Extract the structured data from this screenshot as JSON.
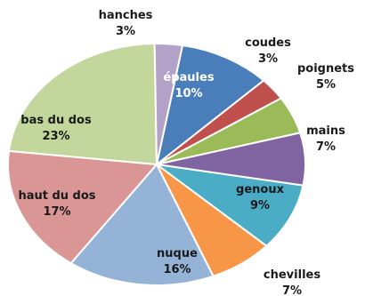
{
  "chart_data": {
    "type": "pie",
    "title": "",
    "slices": [
      {
        "name": "épaules",
        "value": 10,
        "value_label": "10%",
        "color": "#4A7EBB",
        "label_color": "#ffffff"
      },
      {
        "name": "coudes",
        "value": 3,
        "value_label": "3%",
        "color": "#C0504D",
        "label_color": "#1a1a1a"
      },
      {
        "name": "poignets",
        "value": 5,
        "value_label": "5%",
        "color": "#9BBB59",
        "label_color": "#1a1a1a"
      },
      {
        "name": "mains",
        "value": 7,
        "value_label": "7%",
        "color": "#8064A2",
        "label_color": "#1a1a1a"
      },
      {
        "name": "genoux",
        "value": 9,
        "value_label": "9%",
        "color": "#4BACC6",
        "label_color": "#1a1a1a"
      },
      {
        "name": "chevilles",
        "value": 7,
        "value_label": "7%",
        "color": "#F79646",
        "label_color": "#1a1a1a"
      },
      {
        "name": "nuque",
        "value": 16,
        "value_label": "16%",
        "color": "#95B3D7",
        "label_color": "#1a1a1a"
      },
      {
        "name": "haut du dos",
        "value": 17,
        "value_label": "17%",
        "color": "#D99694",
        "label_color": "#1a1a1a"
      },
      {
        "name": "bas du dos",
        "value": 23,
        "value_label": "23%",
        "color": "#C3D69B",
        "label_color": "#1a1a1a"
      },
      {
        "name": "hanches",
        "value": 3,
        "value_label": "3%",
        "color": "#B3A2C7",
        "label_color": "#1a1a1a"
      }
    ],
    "legend": "none"
  }
}
